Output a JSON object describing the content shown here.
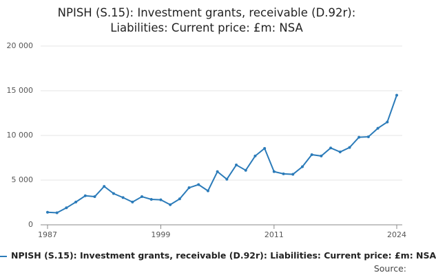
{
  "chart_data": {
    "type": "line",
    "title": "NPISH (S.15): Investment grants, receivable (D.92r): Liabilities: Current price: £m: NSA",
    "x": [
      1987,
      1988,
      1989,
      1990,
      1991,
      1992,
      1993,
      1994,
      1995,
      1996,
      1997,
      1998,
      1999,
      2000,
      2001,
      2002,
      2003,
      2004,
      2005,
      2006,
      2007,
      2008,
      2009,
      2010,
      2011,
      2012,
      2013,
      2014,
      2015,
      2016,
      2017,
      2018,
      2019,
      2020,
      2021,
      2022,
      2023,
      2024
    ],
    "series": [
      {
        "name": "NPISH (S.15): Investment grants, receivable (D.92r): Liabilities: Current price: £m: NSA",
        "color": "#2b7bb9",
        "values": [
          1400,
          1350,
          1900,
          2550,
          3250,
          3150,
          4300,
          3500,
          3050,
          2550,
          3150,
          2850,
          2800,
          2250,
          2900,
          4150,
          4500,
          3800,
          5950,
          5100,
          6700,
          6100,
          7700,
          8550,
          5950,
          5700,
          5650,
          6500,
          7850,
          7700,
          8600,
          8150,
          8650,
          9800,
          9850,
          10800,
          11500,
          14500
        ]
      }
    ],
    "xlim": [
      1987,
      2024
    ],
    "xticks": [
      1987,
      1999,
      2011,
      2024
    ],
    "ylim": [
      0,
      20000
    ],
    "yticks": [
      0,
      {
        "value": 5000,
        "label": "5 000"
      },
      {
        "value": 10000,
        "label": "10 000"
      },
      {
        "value": 15000,
        "label": "15 000"
      },
      {
        "value": 20000,
        "label": "20 000"
      }
    ],
    "grid": true,
    "source_label": "Source:"
  }
}
